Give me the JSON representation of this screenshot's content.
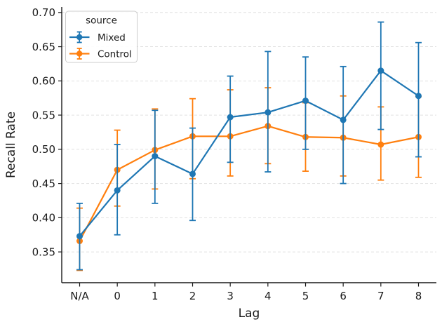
{
  "figure": {
    "background": "#ffffff",
    "text_color": "#1a1a1a",
    "grid_color": "#dcdcdc"
  },
  "chart_data": {
    "type": "line",
    "title": "",
    "xlabel": "Lag",
    "ylabel": "Recall Rate",
    "categories": [
      "N/A",
      "0",
      "1",
      "2",
      "3",
      "4",
      "5",
      "6",
      "7",
      "8"
    ],
    "yticks": [
      0.35,
      0.4,
      0.45,
      0.5,
      0.55,
      0.6,
      0.65,
      0.7
    ],
    "ylim": [
      0.305,
      0.708
    ],
    "grid": "horizontal-dashed",
    "error_bars": "vertical-with-caps",
    "legend": {
      "title": "source",
      "position": "upper-left",
      "entries": [
        {
          "label": "Mixed",
          "color": "#1f77b4"
        },
        {
          "label": "Control",
          "color": "#ff7f0e"
        }
      ]
    },
    "series": [
      {
        "name": "Mixed",
        "color": "#1f77b4",
        "values": [
          0.373,
          0.44,
          0.49,
          0.464,
          0.547,
          0.554,
          0.571,
          0.543,
          0.615,
          0.578
        ],
        "err_low": [
          0.324,
          0.375,
          0.421,
          0.396,
          0.481,
          0.467,
          0.5,
          0.45,
          0.529,
          0.489
        ],
        "err_high": [
          0.421,
          0.507,
          0.557,
          0.531,
          0.607,
          0.643,
          0.635,
          0.621,
          0.686,
          0.656
        ]
      },
      {
        "name": "Control",
        "color": "#ff7f0e",
        "values": [
          0.366,
          0.47,
          0.499,
          0.519,
          0.519,
          0.534,
          0.518,
          0.517,
          0.507,
          0.518
        ],
        "err_low": [
          0.323,
          0.417,
          0.442,
          0.457,
          0.461,
          0.479,
          0.468,
          0.461,
          0.455,
          0.459
        ],
        "err_high": [
          0.414,
          0.528,
          0.559,
          0.574,
          0.587,
          0.59,
          0.568,
          0.578,
          0.562,
          0.577
        ]
      }
    ]
  }
}
